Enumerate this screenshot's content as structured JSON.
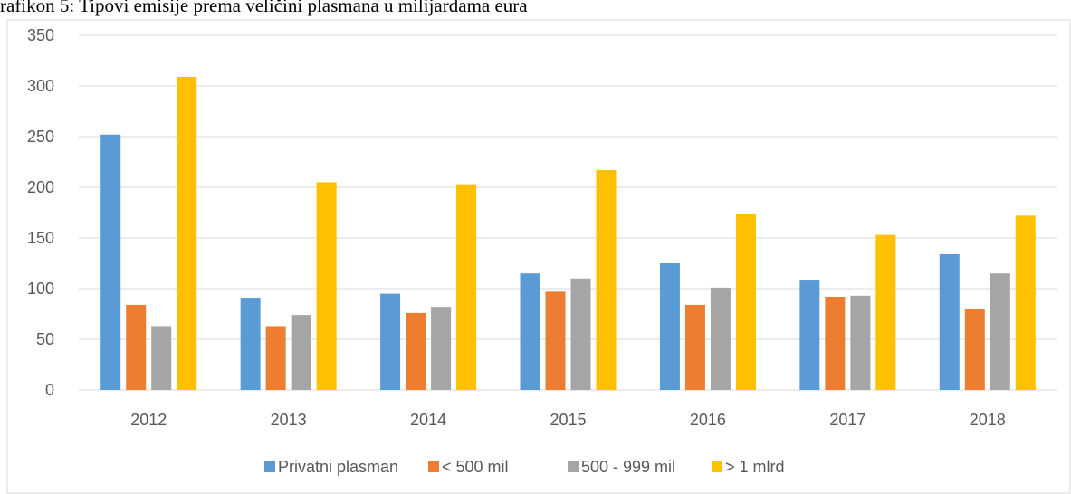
{
  "chart_data": {
    "type": "bar",
    "title": "rafikon 5: Tipovi emisije prema veličini plasmana u milijardama eura",
    "categories": [
      "2012",
      "2013",
      "2014",
      "2015",
      "2016",
      "2017",
      "2018"
    ],
    "series": [
      {
        "name": "Privatni plasman",
        "color": "#5b9bd5",
        "values": [
          252,
          91,
          95,
          115,
          125,
          108,
          134
        ]
      },
      {
        "name": "< 500 mil",
        "color": "#ed7d31",
        "values": [
          84,
          63,
          76,
          97,
          84,
          92,
          80
        ]
      },
      {
        "name": "500 - 999 mil",
        "color": "#a5a5a5",
        "values": [
          63,
          74,
          82,
          110,
          101,
          93,
          115
        ]
      },
      {
        "name": "> 1 mlrd",
        "color": "#ffc000",
        "values": [
          309,
          205,
          203,
          217,
          174,
          153,
          172
        ]
      }
    ],
    "ylim": [
      0,
      350
    ],
    "yticks": [
      0,
      50,
      100,
      150,
      200,
      250,
      300,
      350
    ],
    "grid": true,
    "legend": "bottom"
  }
}
